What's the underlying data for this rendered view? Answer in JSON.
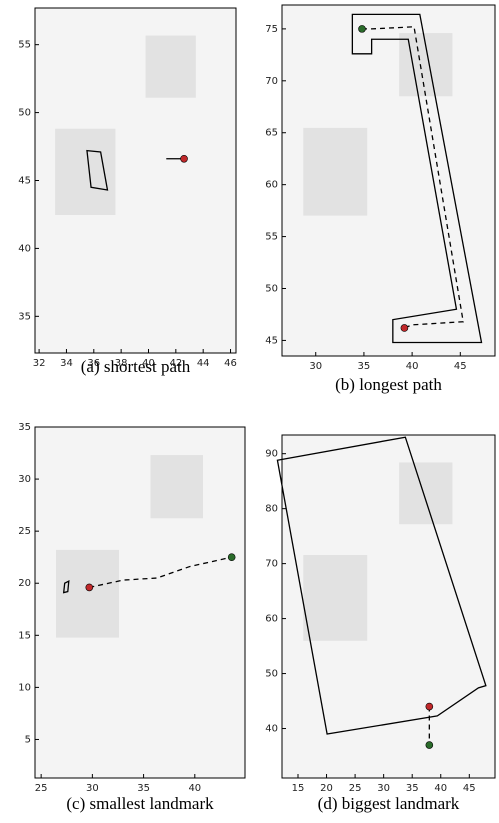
{
  "chart_data": [
    {
      "type": "line",
      "caption": "(a)  shortest path",
      "xlim": [
        31.7,
        46.4
      ],
      "ylim": [
        32.3,
        57.7
      ],
      "xticks": [
        32,
        34,
        36,
        38,
        40,
        42,
        44,
        46
      ],
      "yticks": [
        35,
        40,
        45,
        50,
        55
      ],
      "landmark": {
        "x": [
          35.5,
          36.5,
          37.0,
          35.8
        ],
        "y": [
          47.2,
          47.1,
          44.3,
          44.5
        ]
      },
      "path": {
        "x": [
          41.3,
          42.6
        ],
        "y": [
          46.6,
          46.6
        ],
        "dashed": false
      },
      "points": [
        {
          "x": 42.6,
          "y": 46.6,
          "color": "#c0282a"
        }
      ]
    },
    {
      "type": "line",
      "caption": "(b)  longest path",
      "xlim": [
        26.5,
        48.6
      ],
      "ylim": [
        43.5,
        77.3
      ],
      "xticks": [
        30,
        35,
        40,
        45
      ],
      "yticks": [
        45,
        50,
        55,
        60,
        65,
        70,
        75
      ],
      "landmark": {
        "x": [
          33.8,
          40.8,
          47.2,
          38.0,
          38.0,
          44.6,
          39.6,
          35.8,
          35.8,
          33.8
        ],
        "y": [
          76.4,
          76.4,
          44.8,
          44.8,
          47.0,
          48.0,
          74.0,
          74.0,
          72.6,
          72.6
        ]
      },
      "path": {
        "x": [
          34.8,
          35.8,
          40.2,
          45.3,
          40.0,
          39.2
        ],
        "y": [
          75.0,
          75.0,
          75.2,
          46.8,
          46.5,
          46.2
        ],
        "dashed": true
      },
      "points": [
        {
          "x": 34.8,
          "y": 75.0,
          "color": "#2a6b2a"
        },
        {
          "x": 39.2,
          "y": 46.2,
          "color": "#c0282a"
        }
      ]
    },
    {
      "type": "line",
      "caption": "(c)  smallest landmark",
      "xlim": [
        24.4,
        44.9
      ],
      "ylim": [
        1.3,
        35
      ],
      "xticks": [
        25,
        30,
        35,
        40
      ],
      "yticks": [
        5,
        10,
        15,
        20,
        25,
        30,
        35
      ],
      "landmark": {
        "x": [
          27.3,
          27.7,
          27.6,
          27.2
        ],
        "y": [
          20.0,
          20.2,
          19.2,
          19.1
        ]
      },
      "path": {
        "x": [
          29.7,
          33.0,
          36.3,
          39.5,
          43.6
        ],
        "y": [
          19.6,
          20.3,
          20.5,
          21.6,
          22.5
        ],
        "dashed": true
      },
      "points": [
        {
          "x": 29.7,
          "y": 19.6,
          "color": "#c0282a"
        },
        {
          "x": 43.6,
          "y": 22.5,
          "color": "#2a6b2a"
        }
      ]
    },
    {
      "type": "line",
      "caption": "(d)  biggest landmark",
      "xlim": [
        12.2,
        49.5
      ],
      "ylim": [
        31,
        93.4
      ],
      "xticks": [
        15,
        20,
        25,
        30,
        35,
        40,
        45
      ],
      "yticks": [
        40,
        50,
        60,
        70,
        80,
        90
      ],
      "landmark": {
        "x": [
          11.4,
          33.8,
          47.9,
          46.6,
          39.4,
          20.1
        ],
        "y": [
          88.8,
          93.0,
          47.8,
          47.4,
          42.3,
          39.0
        ]
      },
      "path": {
        "x": [
          38.0,
          38.0
        ],
        "y": [
          44.0,
          37.0
        ],
        "dashed": true
      },
      "points": [
        {
          "x": 38.0,
          "y": 44.0,
          "color": "#c0282a"
        },
        {
          "x": 38.0,
          "y": 37.0,
          "color": "#2a6b2a"
        }
      ]
    }
  ]
}
